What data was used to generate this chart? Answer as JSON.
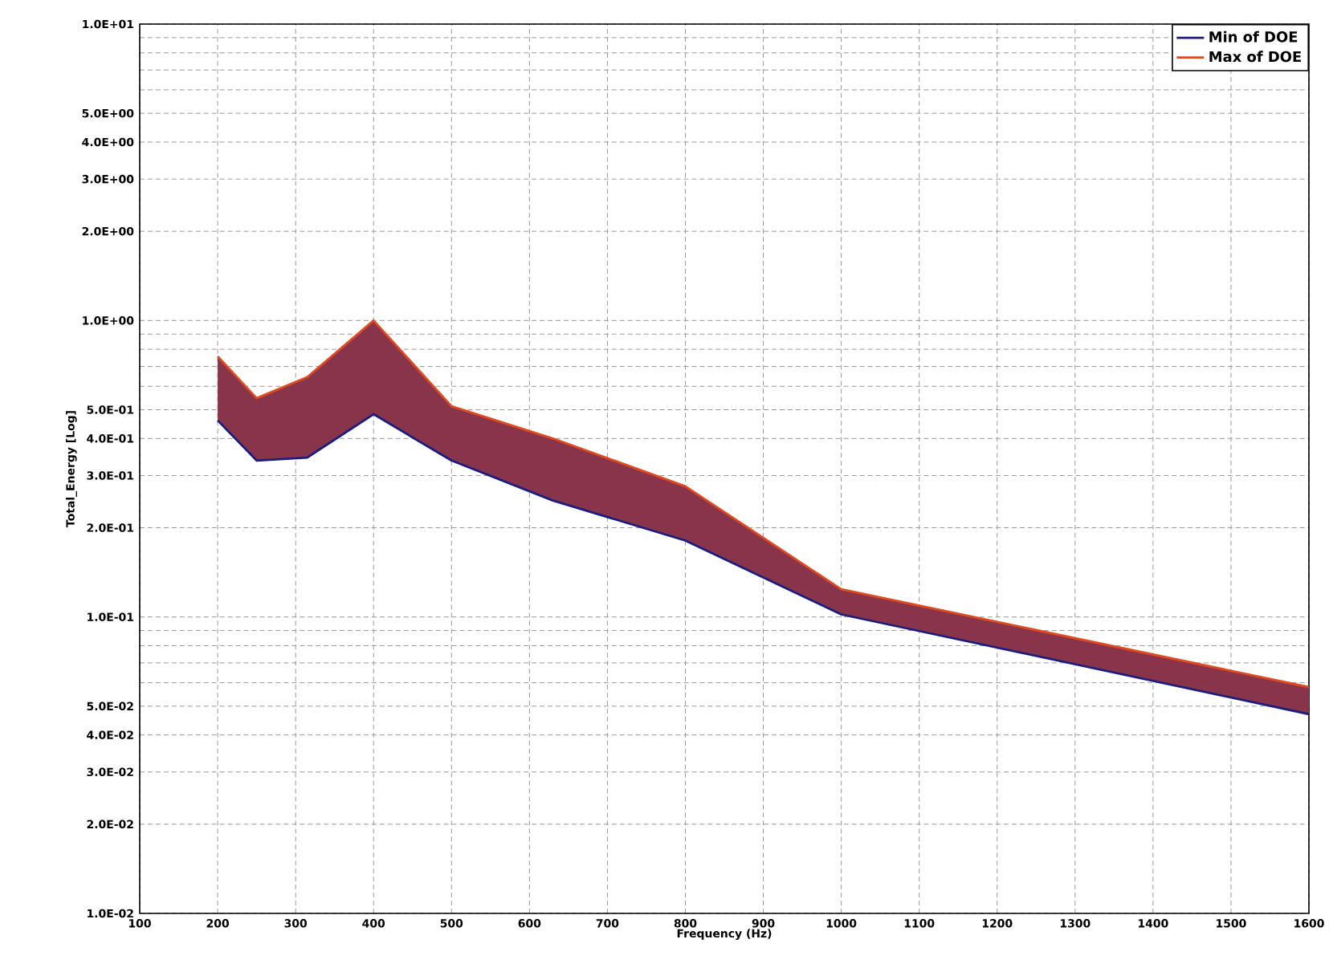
{
  "chart_data": {
    "type": "line",
    "xlabel": "Frequency (Hz)",
    "ylabel": "Total_Energy [Log]",
    "xlim": [
      100,
      1600
    ],
    "xticks": [
      100,
      200,
      300,
      400,
      500,
      600,
      700,
      800,
      900,
      1000,
      1100,
      1200,
      1300,
      1400,
      1500,
      1600
    ],
    "ylim": [
      0.01,
      10
    ],
    "log": "y",
    "yticks": [
      {
        "value": 0.01,
        "label": "1.0E-02"
      },
      {
        "value": 0.02,
        "label": "2.0E-02"
      },
      {
        "value": 0.03,
        "label": "3.0E-02"
      },
      {
        "value": 0.04,
        "label": "4.0E-02"
      },
      {
        "value": 0.05,
        "label": "5.0E-02"
      },
      {
        "value": 0.06,
        "label": null
      },
      {
        "value": 0.07,
        "label": null
      },
      {
        "value": 0.08,
        "label": null
      },
      {
        "value": 0.09,
        "label": null
      },
      {
        "value": 0.1,
        "label": "1.0E-01"
      },
      {
        "value": 0.2,
        "label": "2.0E-01"
      },
      {
        "value": 0.3,
        "label": "3.0E-01"
      },
      {
        "value": 0.4,
        "label": "4.0E-01"
      },
      {
        "value": 0.5,
        "label": "5.0E-01"
      },
      {
        "value": 0.6,
        "label": null
      },
      {
        "value": 0.7,
        "label": null
      },
      {
        "value": 0.8,
        "label": null
      },
      {
        "value": 0.9,
        "label": null
      },
      {
        "value": 1,
        "label": "1.0E+00"
      },
      {
        "value": 2,
        "label": "2.0E+00"
      },
      {
        "value": 3,
        "label": "3.0E+00"
      },
      {
        "value": 4,
        "label": "4.0E+00"
      },
      {
        "value": 5,
        "label": "5.0E+00"
      },
      {
        "value": 6,
        "label": null
      },
      {
        "value": 7,
        "label": null
      },
      {
        "value": 8,
        "label": null
      },
      {
        "value": 9,
        "label": null
      },
      {
        "value": 10,
        "label": "1.0E+01"
      }
    ],
    "grid": true,
    "legend": "top right",
    "marker": "none",
    "line_style": "solid",
    "x": [
      200,
      250,
      315,
      400,
      500,
      630,
      800,
      1000,
      1600
    ],
    "series": [
      {
        "name": "Min of DOE",
        "color": "#1c1c80",
        "values": [
          0.46,
          0.337,
          0.345,
          0.483,
          0.337,
          0.247,
          0.181,
          0.102,
          0.047
        ]
      },
      {
        "name": "Max of DOE",
        "color": "#e04a20",
        "values": [
          0.757,
          0.547,
          0.645,
          1.0,
          0.514,
          0.4,
          0.276,
          0.124,
          0.058
        ],
        "lower": [
          0.46,
          0.337,
          0.345,
          0.483,
          0.337,
          0.247,
          0.181,
          0.102,
          0.047
        ],
        "upper": [
          0.757,
          0.547,
          0.645,
          1.0,
          0.514,
          0.4,
          0.276,
          0.124,
          0.058
        ]
      }
    ]
  }
}
